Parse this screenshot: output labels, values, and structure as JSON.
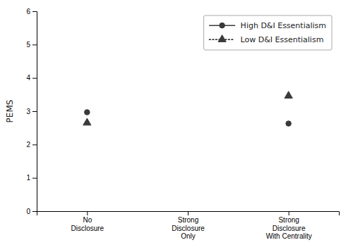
{
  "chart_data": {
    "type": "line",
    "categories": [
      "No\nDisclosure",
      "Strong\nDisclosure\nOnly",
      "Strong\nDisclosure\nWith Centrality"
    ],
    "series": [
      {
        "name": "High D&I Essentialism",
        "color": "#3a3a3a",
        "marker": "circle",
        "line_style": "solid",
        "values": [
          2.97,
          null,
          2.63
        ]
      },
      {
        "name": "Low D&I Essentialism",
        "color": "#3a3a3a",
        "marker": "triangle",
        "line_style": "dotted",
        "values": [
          2.65,
          null,
          3.46
        ]
      }
    ],
    "ylabel": "PEMS",
    "ylim": [
      0,
      6
    ],
    "yticks": [
      0,
      1,
      2,
      3,
      4,
      5,
      6
    ],
    "grid": false,
    "legend": "upper right"
  }
}
